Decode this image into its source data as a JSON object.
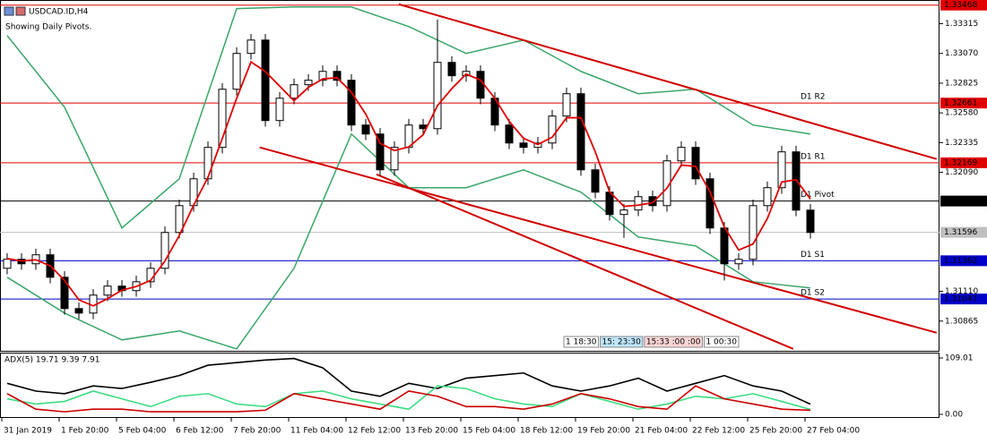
{
  "header": {
    "symbol": "USDCAD.ID,H4",
    "note": "Showing Daily Pivots."
  },
  "chart_data": [
    {
      "type": "candlestick",
      "xlim": [
        -0.5,
        65
      ],
      "ylim": [
        1.3062,
        1.3351
      ],
      "xticks": [
        {
          "value": 0,
          "label": "31 Jan 2019"
        },
        {
          "value": 4,
          "label": "1 Feb 20:00"
        },
        {
          "value": 8,
          "label": "5 Feb 04:00"
        },
        {
          "value": 12,
          "label": "6 Feb 12:00"
        },
        {
          "value": 16,
          "label": "7 Feb 20:00"
        },
        {
          "value": 20,
          "label": "11 Feb 04:00"
        },
        {
          "value": 24,
          "label": "12 Feb 12:00"
        },
        {
          "value": 28,
          "label": "13 Feb 20:00"
        },
        {
          "value": 32,
          "label": "15 Feb 04:00"
        },
        {
          "value": 36,
          "label": "18 Feb 12:00"
        },
        {
          "value": 40,
          "label": "19 Feb 20:00"
        },
        {
          "value": 44,
          "label": "21 Feb 04:00"
        },
        {
          "value": 48,
          "label": "22 Feb 12:00"
        },
        {
          "value": 52,
          "label": "25 Feb 20:00"
        },
        {
          "value": 56,
          "label": "27 Feb 04:00"
        }
      ],
      "yticks": [
        1.33315,
        {
          "value": 1.3307,
          "label": "1.33070"
        },
        1.32825,
        {
          "value": 1.3258,
          "label": "1.32580"
        },
        1.32335,
        {
          "value": 1.3209,
          "label": "1.32090"
        },
        {
          "value": 1.3111,
          "label": "1.31110"
        },
        1.30865
      ],
      "open": [
        1.313,
        1.31374,
        1.31337,
        1.31411,
        1.31226,
        1.30968,
        1.30931,
        1.31079,
        1.31153,
        1.31116,
        1.31189,
        1.313,
        1.31595,
        1.31816,
        1.32037,
        1.32296,
        1.32775,
        1.3307,
        1.3318,
        1.32517,
        1.32701,
        1.32812,
        1.32849,
        1.32922,
        1.32849,
        1.3248,
        1.32406,
        1.32111,
        1.32296,
        1.3248,
        1.3245,
        1.32996,
        1.32886,
        1.32922,
        1.32701,
        1.3248,
        1.32332,
        1.32296,
        1.32332,
        1.32554,
        1.32738,
        1.32111,
        1.31927,
        1.31743,
        1.3178,
        1.3189,
        1.31816,
        1.32185,
        1.32296,
        1.32037,
        1.31632,
        1.31337,
        1.31374,
        1.31816,
        1.31964,
        1.32259,
        1.31779
      ],
      "high": [
        1.31424,
        1.31424,
        1.31461,
        1.31461,
        1.31276,
        1.31018,
        1.31129,
        1.31203,
        1.31203,
        1.31239,
        1.3135,
        1.31645,
        1.31866,
        1.32087,
        1.32346,
        1.32825,
        1.3312,
        1.3323,
        1.3323,
        1.32751,
        1.32862,
        1.32899,
        1.32972,
        1.32972,
        1.32899,
        1.3253,
        1.32456,
        1.32346,
        1.3253,
        1.3253,
        1.3335,
        1.33046,
        1.32972,
        1.32972,
        1.32751,
        1.3253,
        1.32382,
        1.32382,
        1.32604,
        1.32788,
        1.32788,
        1.32161,
        1.31977,
        1.3183,
        1.3194,
        1.3194,
        1.32235,
        1.32346,
        1.32346,
        1.32087,
        1.31682,
        1.31424,
        1.31866,
        1.32014,
        1.32309,
        1.32309,
        1.31829
      ],
      "low": [
        1.3125,
        1.31287,
        1.31287,
        1.31176,
        1.30918,
        1.30881,
        1.30881,
        1.31029,
        1.31066,
        1.31066,
        1.31139,
        1.3125,
        1.31545,
        1.31766,
        1.31987,
        1.32246,
        1.32725,
        1.3302,
        1.32467,
        1.32467,
        1.32651,
        1.32762,
        1.32799,
        1.32799,
        1.3243,
        1.32356,
        1.32061,
        1.32061,
        1.32246,
        1.324,
        1.324,
        1.32836,
        1.32836,
        1.32651,
        1.3243,
        1.32282,
        1.32246,
        1.32246,
        1.32282,
        1.32504,
        1.32061,
        1.31877,
        1.31693,
        1.3155,
        1.3173,
        1.31766,
        1.31766,
        1.32135,
        1.31987,
        1.31582,
        1.312,
        1.31287,
        1.31324,
        1.31766,
        1.31914,
        1.31729,
        1.31545
      ],
      "close": [
        1.31374,
        1.31337,
        1.31411,
        1.31226,
        1.30968,
        1.30931,
        1.31079,
        1.31153,
        1.31116,
        1.31189,
        1.313,
        1.31595,
        1.31816,
        1.32037,
        1.32296,
        1.32775,
        1.3307,
        1.3318,
        1.32517,
        1.32701,
        1.32812,
        1.32849,
        1.32922,
        1.32849,
        1.3248,
        1.32406,
        1.32111,
        1.32296,
        1.3248,
        1.3245,
        1.32996,
        1.32886,
        1.32922,
        1.32701,
        1.3248,
        1.32332,
        1.32296,
        1.32332,
        1.32554,
        1.32738,
        1.32111,
        1.31927,
        1.31743,
        1.3178,
        1.3189,
        1.31816,
        1.32185,
        1.32296,
        1.32037,
        1.31632,
        1.31337,
        1.31374,
        1.31816,
        1.31964,
        1.32259,
        1.31779,
        1.31595
      ],
      "ma": {
        "color": "#e00000",
        "values": [
          1.3138,
          1.3136,
          1.3137,
          1.3132,
          1.312,
          1.3104,
          1.3099,
          1.3105,
          1.3112,
          1.3115,
          1.312,
          1.3136,
          1.3157,
          1.3182,
          1.3205,
          1.3237,
          1.327,
          1.33,
          1.3292,
          1.328,
          1.3268,
          1.3279,
          1.3286,
          1.3287,
          1.3275,
          1.3257,
          1.3233,
          1.3227,
          1.323,
          1.324,
          1.3264,
          1.3278,
          1.329,
          1.3285,
          1.327,
          1.3251,
          1.3237,
          1.3232,
          1.3238,
          1.3254,
          1.3254,
          1.3226,
          1.3193,
          1.3181,
          1.3182,
          1.3184,
          1.3196,
          1.3215,
          1.3214,
          1.3193,
          1.3164,
          1.3145,
          1.315,
          1.3171,
          1.3201,
          1.3203,
          1.3187
        ]
      },
      "bands": {
        "color": "#3aa66a",
        "x": [
          0,
          4,
          8,
          12,
          16,
          20,
          24,
          28,
          32,
          36,
          40,
          44,
          48,
          52,
          56
        ],
        "upper": [
          1.33217,
          1.32627,
          1.31632,
          1.32037,
          1.33439,
          1.33453,
          1.33453,
          1.33291,
          1.3307,
          1.3318,
          1.32922,
          1.32738,
          1.32775,
          1.3248,
          1.32406
        ],
        "lower": [
          1.31226,
          1.30931,
          1.3071,
          1.30784,
          1.30636,
          1.313,
          1.32406,
          1.31964,
          1.31964,
          1.32111,
          1.31927,
          1.31558,
          1.31484,
          1.31189,
          1.31138
        ]
      },
      "trendlines": {
        "color": "#d00000",
        "lines": [
          {
            "x": [
              27.3,
              64.8
            ],
            "y": [
              1.33475,
              1.322
            ]
          },
          {
            "x": [
              17.6,
              64.8
            ],
            "y": [
              1.32296,
              1.30769
            ]
          },
          {
            "x": [
              25.75,
              54.8
            ],
            "y": [
              1.32074,
              1.30636
            ]
          }
        ]
      },
      "levels": [
        {
          "label": "D1 R3",
          "value": 1.33468,
          "color": "#e00000"
        },
        {
          "label": "D1 R2",
          "value": 1.32661,
          "color": "#e00000"
        },
        {
          "label": "D1 R1",
          "value": 1.32169,
          "color": "#e00000"
        },
        {
          "label": "D1 Pivot",
          "value": 1.31854,
          "color": "#000000"
        },
        {
          "value": 1.31596,
          "color": "#c0c0c0"
        },
        {
          "label": "D1 S1",
          "value": 1.31362,
          "color": "#0000c8"
        },
        {
          "label": "D1 S2",
          "value": 1.31047,
          "color": "#0000c8"
        }
      ],
      "timers": [
        "1 18:30",
        "15: 23:30",
        "15:33 :00 :00",
        "1 00:30"
      ]
    },
    {
      "type": "line",
      "title": "ADX(5) 19.71 9.39 7.91",
      "ylim": [
        0,
        109.01
      ],
      "yticks": [
        109.01,
        {
          "value": 0,
          "label": "0.00"
        }
      ],
      "x": [
        0,
        2,
        4,
        6,
        8,
        10,
        12,
        14,
        16,
        18,
        20,
        22,
        24,
        26,
        28,
        30,
        32,
        34,
        36,
        38,
        40,
        42,
        44,
        46,
        48,
        50,
        52,
        54,
        56
      ],
      "series": [
        {
          "color": "#000000",
          "values": [
            60,
            45,
            40,
            55,
            50,
            62,
            75,
            95,
            100,
            105,
            108,
            90,
            45,
            35,
            60,
            50,
            70,
            75,
            80,
            55,
            45,
            55,
            70,
            45,
            60,
            75,
            55,
            45,
            19.71
          ]
        },
        {
          "color": "#3ddc84",
          "values": [
            30,
            20,
            25,
            45,
            30,
            15,
            35,
            40,
            20,
            15,
            40,
            45,
            30,
            20,
            10,
            55,
            50,
            30,
            20,
            15,
            40,
            25,
            10,
            20,
            35,
            30,
            40,
            25,
            9.39
          ]
        },
        {
          "color": "#cc0000",
          "values": [
            40,
            10,
            5,
            10,
            10,
            5,
            5,
            5,
            5,
            8,
            40,
            30,
            20,
            10,
            45,
            35,
            15,
            15,
            10,
            20,
            40,
            30,
            15,
            10,
            55,
            30,
            20,
            10,
            7.91
          ]
        }
      ]
    }
  ]
}
